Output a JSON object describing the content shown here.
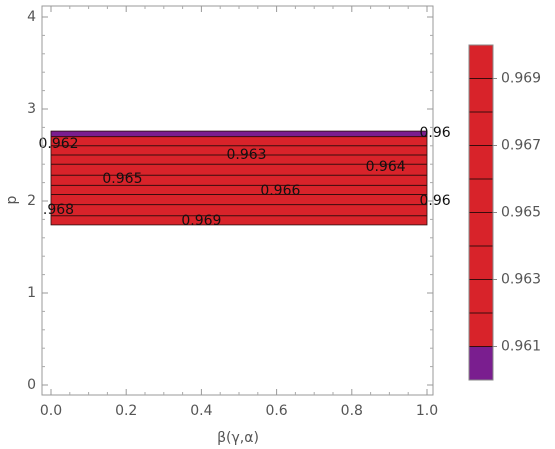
{
  "chart_data": {
    "type": "heatmap",
    "subtype": "contour",
    "xlabel": "β(γ,α)",
    "ylabel": "p",
    "xlim": [
      0,
      1
    ],
    "ylim": [
      -0.1,
      4.15
    ],
    "x_ticks": [
      "0.0",
      "0.2",
      "0.4",
      "0.6",
      "0.8",
      "1.0"
    ],
    "x_tick_values": [
      0.0,
      0.2,
      0.4,
      0.6,
      0.8,
      1.0
    ],
    "y_ticks": [
      "0",
      "1",
      "2",
      "3",
      "4"
    ],
    "y_tick_values": [
      0,
      1,
      2,
      3,
      4
    ],
    "region": {
      "x": [
        0,
        1
      ],
      "y": [
        1.74,
        2.76
      ]
    },
    "bands": [
      {
        "y_from": 1.74,
        "y_to": 2.7,
        "color": "#d8232a"
      },
      {
        "y_from": 2.7,
        "y_to": 2.76,
        "color": "#7a1e8f"
      }
    ],
    "contour_lines_y": [
      1.84,
      1.96,
      2.07,
      2.17,
      2.28,
      2.4,
      2.5,
      2.6,
      2.7
    ],
    "contour_labels": [
      {
        "text": "0.962",
        "x": 0.02,
        "y": 2.62
      },
      {
        "text": "0.965",
        "x": 0.19,
        "y": 2.24
      },
      {
        "text": "0.963",
        "x": 0.52,
        "y": 2.5
      },
      {
        "text": "0.966",
        "x": 0.61,
        "y": 2.11
      },
      {
        "text": "0.964",
        "x": 0.89,
        "y": 2.37
      },
      {
        "text": "0.969",
        "x": 0.4,
        "y": 1.78
      },
      {
        "text": ".968",
        "x": 0.02,
        "y": 1.9
      },
      {
        "text": "0.96",
        "x": 0.98,
        "y": 2.74
      },
      {
        "text": "0.96",
        "x": 0.98,
        "y": 2.0
      }
    ],
    "legend": {
      "placement": "right",
      "min": 0.96,
      "max": 0.97,
      "bands": [
        {
          "from": 0.96,
          "to": 0.961,
          "color": "#7a1e8f"
        },
        {
          "from": 0.961,
          "to": 0.97,
          "color": "#d8232a"
        }
      ],
      "band_edges": [
        0.961,
        0.962,
        0.963,
        0.964,
        0.965,
        0.966,
        0.967,
        0.968,
        0.969
      ],
      "tick_labels": [
        "0.961",
        "0.963",
        "0.965",
        "0.967",
        "0.969"
      ],
      "tick_values": [
        0.961,
        0.963,
        0.965,
        0.967,
        0.969
      ]
    },
    "grid": false
  }
}
